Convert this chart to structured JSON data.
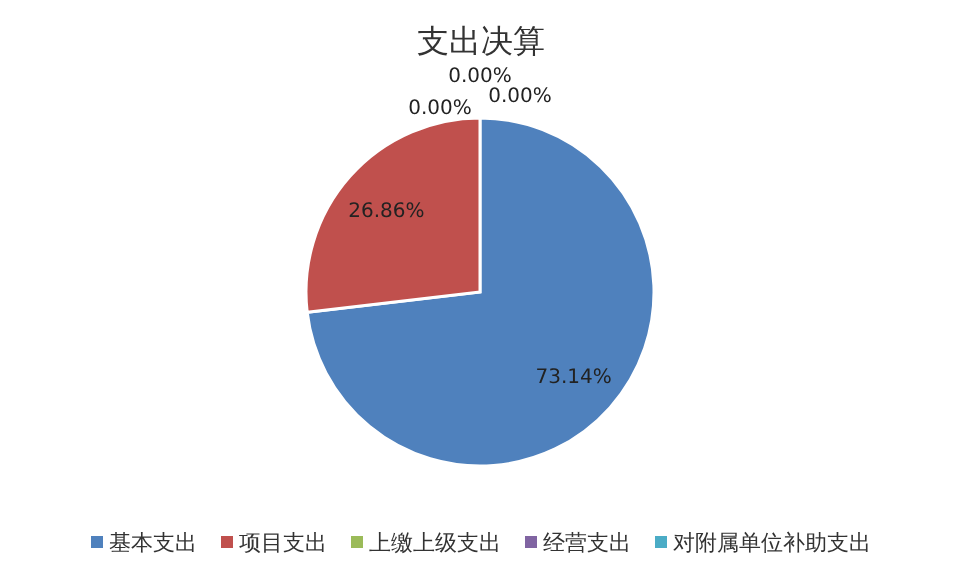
{
  "chart_data": {
    "type": "pie",
    "title": "支出决算",
    "categories": [
      "基本支出",
      "项目支出",
      "上缴上级支出",
      "经营支出",
      "对附属单位补助支出"
    ],
    "values": [
      73.14,
      26.86,
      0,
      0,
      0
    ],
    "colors": [
      "#4f81bd",
      "#c0504d",
      "#9bbb59",
      "#8064a2",
      "#4bacc6"
    ],
    "value_labels": [
      "73.14%",
      "26.86%",
      "0.00%",
      "0.00%",
      "0.00%"
    ],
    "legend": "bottom"
  }
}
